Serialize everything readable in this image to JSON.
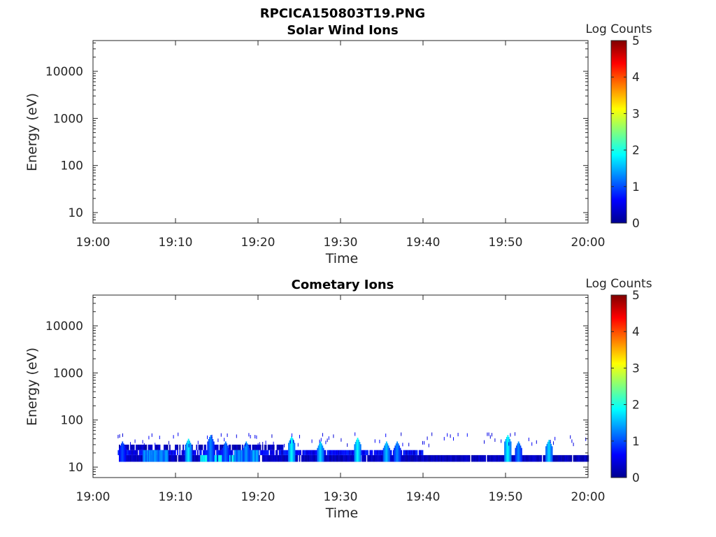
{
  "figure": {
    "title": "RPCICA150803T19.PNG"
  },
  "colors": {
    "axis": "#262626",
    "background": "#ffffff",
    "colormap": "jet"
  },
  "chart_data": [
    {
      "type": "heatmap",
      "title": "Solar Wind Ions",
      "xlabel": "Time",
      "ylabel": "Energy (eV)",
      "x_ticks": [
        "19:00",
        "19:10",
        "19:20",
        "19:30",
        "19:40",
        "19:50",
        "20:00"
      ],
      "y_ticks": [
        "10",
        "100",
        "1000",
        "10000"
      ],
      "y_scale": "log",
      "xlim": [
        "19:00",
        "20:00"
      ],
      "ylim": [
        6,
        45000
      ],
      "colorbar": {
        "label": "Log Counts",
        "ticks": [
          "0",
          "1",
          "2",
          "3",
          "4",
          "5"
        ],
        "range": [
          0,
          5
        ]
      },
      "cells": []
    },
    {
      "type": "heatmap",
      "title": "Cometary Ions",
      "xlabel": "Time",
      "ylabel": "Energy (eV)",
      "x_ticks": [
        "19:00",
        "19:10",
        "19:20",
        "19:30",
        "19:40",
        "19:50",
        "20:00"
      ],
      "y_ticks": [
        "10",
        "100",
        "1000",
        "10000"
      ],
      "y_scale": "log",
      "xlim": [
        "19:00",
        "20:00"
      ],
      "ylim": [
        6,
        45000
      ],
      "colorbar": {
        "label": "Log Counts",
        "ticks": [
          "0",
          "1",
          "2",
          "3",
          "4",
          "5"
        ],
        "range": [
          0,
          5
        ]
      },
      "data_start": "19:03",
      "data_end": "20:00",
      "base_band": {
        "energy_range": [
          13,
          18
        ],
        "log_counts": 0.3
      },
      "secondary_band": {
        "energy_range": [
          18,
          23
        ],
        "log_counts": 0.6,
        "time_range": [
          "19:03",
          "19:40"
        ]
      },
      "upper_band": {
        "energy_range": [
          23,
          30
        ],
        "log_counts": 0.3,
        "time_range": [
          "19:03",
          "19:23"
        ]
      },
      "enhanced_intervals": [
        {
          "time_range": [
            "19:06",
            "19:09"
          ],
          "energy_range": [
            13,
            23
          ],
          "log_counts": 1.2
        },
        {
          "time_range": [
            "19:13",
            "19:17"
          ],
          "energy_range": [
            13,
            18
          ],
          "log_counts": 1.8
        },
        {
          "time_range": [
            "19:17",
            "19:20"
          ],
          "energy_range": [
            13,
            23
          ],
          "log_counts": 1.3
        }
      ],
      "bursts": [
        {
          "time": "19:03.5",
          "peak_energy": 35,
          "log_counts": 1.0
        },
        {
          "time": "19:11.5",
          "peak_energy": 40,
          "log_counts": 1.8
        },
        {
          "time": "19:14.2",
          "peak_energy": 48,
          "log_counts": 1.3
        },
        {
          "time": "19:16.0",
          "peak_energy": 35,
          "log_counts": 1.2
        },
        {
          "time": "19:18.5",
          "peak_energy": 35,
          "log_counts": 1.4
        },
        {
          "time": "19:24.0",
          "peak_energy": 45,
          "log_counts": 1.9
        },
        {
          "time": "19:27.5",
          "peak_energy": 35,
          "log_counts": 1.7
        },
        {
          "time": "19:32.0",
          "peak_energy": 42,
          "log_counts": 1.9
        },
        {
          "time": "19:35.5",
          "peak_energy": 35,
          "log_counts": 1.6
        },
        {
          "time": "19:36.8",
          "peak_energy": 35,
          "log_counts": 1.3
        },
        {
          "time": "19:50.2",
          "peak_energy": 48,
          "log_counts": 1.9
        },
        {
          "time": "19:51.5",
          "peak_energy": 35,
          "log_counts": 1.3
        },
        {
          "time": "19:55.2",
          "peak_energy": 38,
          "log_counts": 1.7
        }
      ],
      "sparse_speckle": {
        "energy_range": [
          28,
          50
        ],
        "log_counts": 0.4
      }
    }
  ]
}
